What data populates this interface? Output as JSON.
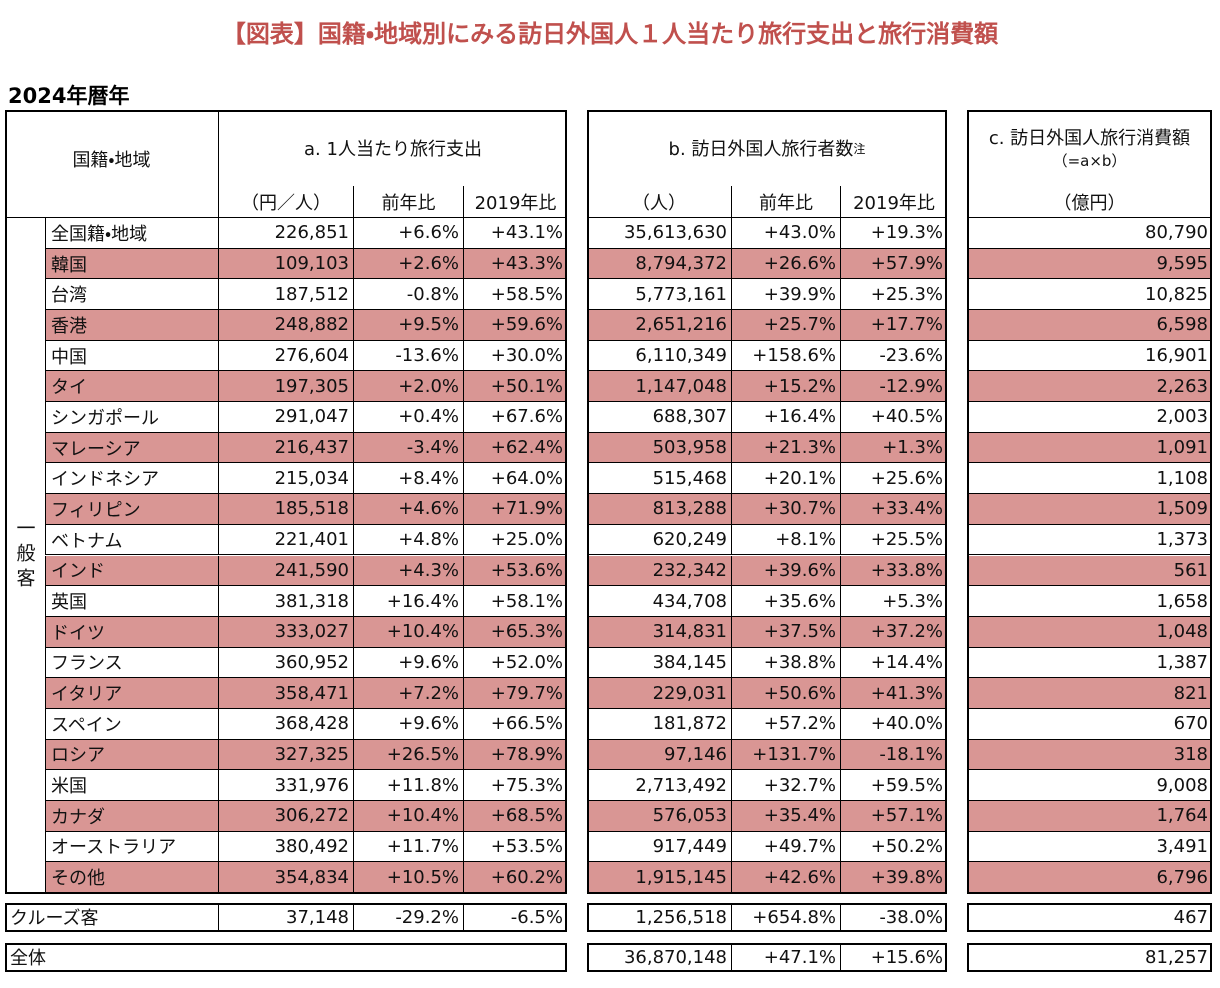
{
  "header": {
    "title": "【図表】国籍・地域別にみる訪日外国人１人当たり旅行支出と旅行消費額",
    "subtitle": "2024年暦年"
  },
  "table": {
    "group_label": "一般客",
    "columns": {
      "region": "国籍・地域",
      "a": "a. 1人当たり旅行支出",
      "b": "b. 訪日外国人旅行者数",
      "b_note": "注",
      "c": "c. 訪日外国人旅行消費額",
      "c_formula": "（=a×b）",
      "units": [
        "（円／人）",
        "前年比",
        "2019年比",
        "（人）",
        "前年比",
        "2019年比",
        "（億円）"
      ]
    },
    "rows": [
      [
        "全国籍・地域",
        "226,851",
        "+6.6%",
        "+43.1%",
        "35,613,630",
        "+43.0%",
        "+19.3%",
        "80,790"
      ],
      [
        "韓国",
        "109,103",
        "+2.6%",
        "+43.3%",
        "8,794,372",
        "+26.6%",
        "+57.9%",
        "9,595"
      ],
      [
        "台湾",
        "187,512",
        "-0.8%",
        "+58.5%",
        "5,773,161",
        "+39.9%",
        "+25.3%",
        "10,825"
      ],
      [
        "香港",
        "248,882",
        "+9.5%",
        "+59.6%",
        "2,651,216",
        "+25.7%",
        "+17.7%",
        "6,598"
      ],
      [
        "中国",
        "276,604",
        "-13.6%",
        "+30.0%",
        "6,110,349",
        "+158.6%",
        "-23.6%",
        "16,901"
      ],
      [
        "タイ",
        "197,305",
        "+2.0%",
        "+50.1%",
        "1,147,048",
        "+15.2%",
        "-12.9%",
        "2,263"
      ],
      [
        "シンガポール",
        "291,047",
        "+0.4%",
        "+67.6%",
        "688,307",
        "+16.4%",
        "+40.5%",
        "2,003"
      ],
      [
        "マレーシア",
        "216,437",
        "-3.4%",
        "+62.4%",
        "503,958",
        "+21.3%",
        "+1.3%",
        "1,091"
      ],
      [
        "インドネシア",
        "215,034",
        "+8.4%",
        "+64.0%",
        "515,468",
        "+20.1%",
        "+25.6%",
        "1,108"
      ],
      [
        "フィリピン",
        "185,518",
        "+4.6%",
        "+71.9%",
        "813,288",
        "+30.7%",
        "+33.4%",
        "1,509"
      ],
      [
        "ベトナム",
        "221,401",
        "+4.8%",
        "+25.0%",
        "620,249",
        "+8.1%",
        "+25.5%",
        "1,373"
      ],
      [
        "インド",
        "241,590",
        "+4.3%",
        "+53.6%",
        "232,342",
        "+39.6%",
        "+33.8%",
        "561"
      ],
      [
        "英国",
        "381,318",
        "+16.4%",
        "+58.1%",
        "434,708",
        "+35.6%",
        "+5.3%",
        "1,658"
      ],
      [
        "ドイツ",
        "333,027",
        "+10.4%",
        "+65.3%",
        "314,831",
        "+37.5%",
        "+37.2%",
        "1,048"
      ],
      [
        "フランス",
        "360,952",
        "+9.6%",
        "+52.0%",
        "384,145",
        "+38.8%",
        "+14.4%",
        "1,387"
      ],
      [
        "イタリア",
        "358,471",
        "+7.2%",
        "+79.7%",
        "229,031",
        "+50.6%",
        "+41.3%",
        "821"
      ],
      [
        "スペイン",
        "368,428",
        "+9.6%",
        "+66.5%",
        "181,872",
        "+57.2%",
        "+40.0%",
        "670"
      ],
      [
        "ロシア",
        "327,325",
        "+26.5%",
        "+78.9%",
        "97,146",
        "+131.7%",
        "-18.1%",
        "318"
      ],
      [
        "米国",
        "331,976",
        "+11.8%",
        "+75.3%",
        "2,713,492",
        "+32.7%",
        "+59.5%",
        "9,008"
      ],
      [
        "カナダ",
        "306,272",
        "+10.4%",
        "+68.5%",
        "576,053",
        "+35.4%",
        "+57.1%",
        "1,764"
      ],
      [
        "オーストラリア",
        "380,492",
        "+11.7%",
        "+53.5%",
        "917,449",
        "+49.7%",
        "+50.2%",
        "3,491"
      ],
      [
        "その他",
        "354,834",
        "+10.5%",
        "+60.2%",
        "1,915,145",
        "+42.6%",
        "+39.8%",
        "6,796"
      ]
    ],
    "cruise": [
      "クルーズ客",
      "37,148",
      "-29.2%",
      "-6.5%",
      "1,256,518",
      "+654.8%",
      "-38.0%",
      "467"
    ],
    "total": {
      "name": "全体",
      "b": [
        "36,870,148",
        "+47.1%",
        "+15.6%"
      ],
      "c": "81,257"
    }
  }
}
